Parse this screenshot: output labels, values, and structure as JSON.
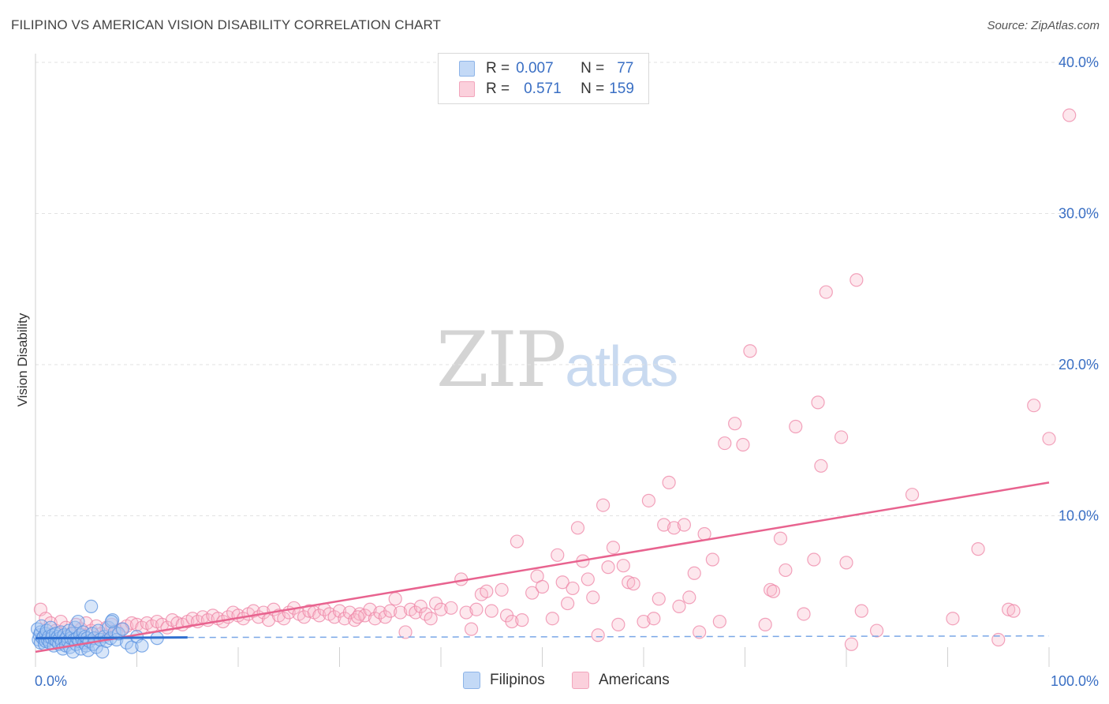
{
  "header": {
    "title": "FILIPINO VS AMERICAN VISION DISABILITY CORRELATION CHART",
    "source": "Source: ZipAtlas.com"
  },
  "watermark": {
    "zip": "ZIP",
    "atlas": "atlas"
  },
  "legend": {
    "rows": [
      {
        "r_label": "R =",
        "r_value": "0.007",
        "n_label": "N =",
        "n_value": "77",
        "color": "#a9c8f2"
      },
      {
        "r_label": "R =",
        "r_value": "0.571",
        "n_label": "N =",
        "n_value": "159",
        "color": "#f8b9cb"
      }
    ]
  },
  "bottom_legend": {
    "filipinos": "Filipinos",
    "americans": "Americans"
  },
  "chart_data": {
    "type": "scatter",
    "title": "FILIPINO VS AMERICAN VISION DISABILITY CORRELATION CHART",
    "xlabel": "",
    "ylabel": "Vision Disability",
    "xlim": [
      0,
      100
    ],
    "ylim": [
      0,
      42
    ],
    "x_tick_labels": [
      "0.0%",
      "100.0%"
    ],
    "y_ticks": [
      10,
      20,
      30,
      40
    ],
    "y_tick_labels": [
      "10.0%",
      "20.0%",
      "30.0%",
      "40.0%"
    ],
    "colors": {
      "filipinos": "#5b93e0",
      "americans": "#ee84a6",
      "axis_label": "#3a6fc4"
    },
    "series": [
      {
        "name": "Filipinos",
        "trend": {
          "x": [
            0,
            15
          ],
          "y": [
            1.9,
            1.95
          ]
        },
        "trend_extended": {
          "x": [
            15,
            100
          ],
          "y": [
            1.95,
            2.05
          ]
        },
        "points": [
          [
            0.2,
            2.5
          ],
          [
            0.3,
            1.8
          ],
          [
            0.4,
            2.1
          ],
          [
            0.5,
            2.3
          ],
          [
            0.5,
            1.6
          ],
          [
            0.6,
            2.7
          ],
          [
            0.7,
            1.9
          ],
          [
            0.8,
            2.0
          ],
          [
            0.9,
            1.5
          ],
          [
            1.0,
            2.2
          ],
          [
            1.0,
            1.7
          ],
          [
            1.1,
            2.4
          ],
          [
            1.2,
            1.8
          ],
          [
            1.3,
            2.0
          ],
          [
            1.4,
            1.6
          ],
          [
            1.5,
            2.6
          ],
          [
            1.6,
            1.9
          ],
          [
            1.7,
            2.1
          ],
          [
            1.8,
            1.4
          ],
          [
            1.9,
            1.8
          ],
          [
            2.0,
            2.2
          ],
          [
            2.1,
            1.7
          ],
          [
            2.2,
            2.0
          ],
          [
            2.3,
            1.5
          ],
          [
            2.4,
            1.9
          ],
          [
            2.5,
            2.3
          ],
          [
            2.6,
            1.6
          ],
          [
            2.7,
            1.2
          ],
          [
            2.8,
            2.1
          ],
          [
            2.9,
            1.8
          ],
          [
            3.0,
            1.4
          ],
          [
            3.1,
            2.0
          ],
          [
            3.2,
            1.7
          ],
          [
            3.3,
            2.4
          ],
          [
            3.4,
            1.3
          ],
          [
            3.5,
            1.9
          ],
          [
            3.6,
            2.2
          ],
          [
            3.7,
            1.0
          ],
          [
            3.8,
            1.8
          ],
          [
            3.9,
            2.6
          ],
          [
            4.0,
            1.5
          ],
          [
            4.1,
            1.9
          ],
          [
            4.2,
            3.0
          ],
          [
            4.3,
            1.7
          ],
          [
            4.4,
            2.1
          ],
          [
            4.5,
            1.2
          ],
          [
            4.6,
            1.8
          ],
          [
            4.7,
            2.3
          ],
          [
            4.8,
            1.6
          ],
          [
            4.9,
            2.0
          ],
          [
            5.0,
            1.4
          ],
          [
            5.1,
            1.9
          ],
          [
            5.2,
            1.1
          ],
          [
            5.3,
            1.7
          ],
          [
            5.5,
            4.0
          ],
          [
            5.6,
            2.2
          ],
          [
            5.7,
            1.5
          ],
          [
            5.8,
            1.9
          ],
          [
            6.0,
            1.3
          ],
          [
            6.2,
            2.4
          ],
          [
            6.4,
            1.8
          ],
          [
            6.6,
            1.0
          ],
          [
            6.8,
            2.0
          ],
          [
            7.0,
            1.7
          ],
          [
            7.2,
            2.6
          ],
          [
            7.4,
            1.9
          ],
          [
            7.6,
            3.1
          ],
          [
            7.8,
            2.3
          ],
          [
            8.0,
            1.8
          ],
          [
            8.2,
            2.2
          ],
          [
            8.6,
            2.5
          ],
          [
            9.0,
            1.6
          ],
          [
            9.5,
            1.3
          ],
          [
            10.0,
            2.0
          ],
          [
            10.5,
            1.4
          ],
          [
            7.5,
            3.0
          ],
          [
            12.0,
            1.9
          ]
        ]
      },
      {
        "name": "Americans",
        "trend": {
          "x": [
            0,
            100
          ],
          "y": [
            1.0,
            12.2
          ]
        },
        "points": [
          [
            0.5,
            3.8
          ],
          [
            1.0,
            3.2
          ],
          [
            1.5,
            2.9
          ],
          [
            2.0,
            2.4
          ],
          [
            2.5,
            3.0
          ],
          [
            3.0,
            2.6
          ],
          [
            3.5,
            2.2
          ],
          [
            4.0,
            2.8
          ],
          [
            4.5,
            2.5
          ],
          [
            5.0,
            2.9
          ],
          [
            5.5,
            2.4
          ],
          [
            6.0,
            2.7
          ],
          [
            6.5,
            2.2
          ],
          [
            7.0,
            2.6
          ],
          [
            7.5,
            2.8
          ],
          [
            8.0,
            2.4
          ],
          [
            8.5,
            2.5
          ],
          [
            9.0,
            2.7
          ],
          [
            9.5,
            2.9
          ],
          [
            10.0,
            2.8
          ],
          [
            10.5,
            2.6
          ],
          [
            11.0,
            2.9
          ],
          [
            11.5,
            2.7
          ],
          [
            12.0,
            3.0
          ],
          [
            12.5,
            2.8
          ],
          [
            13.0,
            2.6
          ],
          [
            13.5,
            3.1
          ],
          [
            14.0,
            2.9
          ],
          [
            14.5,
            2.8
          ],
          [
            15.0,
            3.0
          ],
          [
            15.5,
            3.2
          ],
          [
            16.0,
            3.0
          ],
          [
            16.5,
            3.3
          ],
          [
            17.0,
            3.1
          ],
          [
            17.5,
            3.4
          ],
          [
            18.0,
            3.2
          ],
          [
            18.5,
            3.0
          ],
          [
            19.0,
            3.3
          ],
          [
            19.5,
            3.6
          ],
          [
            20.0,
            3.4
          ],
          [
            20.5,
            3.2
          ],
          [
            21.0,
            3.5
          ],
          [
            21.5,
            3.7
          ],
          [
            22.0,
            3.3
          ],
          [
            22.5,
            3.6
          ],
          [
            23.0,
            3.1
          ],
          [
            23.5,
            3.8
          ],
          [
            24.0,
            3.4
          ],
          [
            24.5,
            3.2
          ],
          [
            25.0,
            3.6
          ],
          [
            25.5,
            3.9
          ],
          [
            26.0,
            3.5
          ],
          [
            26.5,
            3.3
          ],
          [
            27.0,
            3.7
          ],
          [
            27.5,
            3.6
          ],
          [
            28.0,
            3.4
          ],
          [
            28.5,
            3.8
          ],
          [
            29.0,
            3.5
          ],
          [
            29.5,
            3.3
          ],
          [
            30.0,
            3.7
          ],
          [
            30.5,
            3.2
          ],
          [
            31.0,
            3.6
          ],
          [
            31.5,
            3.1
          ],
          [
            32.0,
            3.5
          ],
          [
            32.5,
            3.4
          ],
          [
            33.0,
            3.8
          ],
          [
            33.5,
            3.2
          ],
          [
            34.0,
            3.6
          ],
          [
            34.5,
            3.3
          ],
          [
            35.0,
            3.7
          ],
          [
            35.5,
            4.5
          ],
          [
            36.0,
            3.6
          ],
          [
            36.5,
            2.3
          ],
          [
            37.0,
            3.8
          ],
          [
            37.5,
            3.6
          ],
          [
            38.0,
            4.0
          ],
          [
            38.5,
            3.5
          ],
          [
            39.0,
            3.2
          ],
          [
            39.5,
            4.2
          ],
          [
            40.0,
            3.8
          ],
          [
            41.0,
            3.9
          ],
          [
            42.0,
            5.8
          ],
          [
            42.5,
            3.6
          ],
          [
            43.0,
            2.5
          ],
          [
            43.5,
            3.8
          ],
          [
            44.0,
            4.8
          ],
          [
            44.5,
            5.0
          ],
          [
            45.0,
            3.7
          ],
          [
            46.0,
            5.1
          ],
          [
            46.5,
            3.4
          ],
          [
            47.0,
            3.0
          ],
          [
            47.5,
            8.3
          ],
          [
            48.0,
            3.1
          ],
          [
            49.0,
            4.9
          ],
          [
            49.5,
            6.0
          ],
          [
            50.0,
            5.3
          ],
          [
            51.0,
            3.2
          ],
          [
            51.5,
            7.4
          ],
          [
            52.0,
            5.6
          ],
          [
            52.5,
            4.2
          ],
          [
            53.0,
            5.2
          ],
          [
            53.5,
            9.2
          ],
          [
            54.0,
            7.0
          ],
          [
            54.5,
            5.8
          ],
          [
            55.0,
            4.6
          ],
          [
            55.5,
            2.1
          ],
          [
            56.0,
            10.7
          ],
          [
            56.5,
            6.6
          ],
          [
            57.0,
            7.9
          ],
          [
            57.5,
            2.8
          ],
          [
            58.0,
            6.7
          ],
          [
            58.5,
            5.6
          ],
          [
            59.0,
            5.5
          ],
          [
            60.0,
            3.0
          ],
          [
            60.5,
            11.0
          ],
          [
            61.0,
            3.2
          ],
          [
            61.5,
            4.5
          ],
          [
            62.0,
            9.4
          ],
          [
            62.5,
            12.2
          ],
          [
            63.0,
            9.2
          ],
          [
            63.5,
            4.0
          ],
          [
            64.0,
            9.4
          ],
          [
            64.5,
            4.6
          ],
          [
            65.0,
            6.2
          ],
          [
            65.5,
            2.3
          ],
          [
            66.0,
            8.8
          ],
          [
            66.8,
            7.1
          ],
          [
            67.5,
            3.0
          ],
          [
            68.0,
            14.8
          ],
          [
            69.0,
            16.1
          ],
          [
            69.8,
            14.7
          ],
          [
            70.5,
            20.9
          ],
          [
            72.0,
            2.8
          ],
          [
            72.5,
            5.1
          ],
          [
            72.8,
            5.0
          ],
          [
            73.5,
            8.5
          ],
          [
            74.0,
            6.4
          ],
          [
            75.0,
            15.9
          ],
          [
            75.8,
            3.5
          ],
          [
            76.8,
            7.1
          ],
          [
            77.2,
            17.5
          ],
          [
            77.5,
            13.3
          ],
          [
            78.0,
            24.8
          ],
          [
            79.5,
            15.2
          ],
          [
            80.0,
            6.9
          ],
          [
            80.5,
            1.5
          ],
          [
            81.0,
            25.6
          ],
          [
            81.5,
            3.7
          ],
          [
            83.0,
            2.4
          ],
          [
            86.5,
            11.4
          ],
          [
            90.5,
            3.2
          ],
          [
            93.0,
            7.8
          ],
          [
            95.0,
            1.8
          ],
          [
            96.0,
            3.8
          ],
          [
            96.5,
            3.7
          ],
          [
            98.5,
            17.3
          ],
          [
            100.0,
            15.1
          ],
          [
            102.0,
            36.5
          ],
          [
            31.8,
            3.3
          ]
        ]
      }
    ]
  }
}
